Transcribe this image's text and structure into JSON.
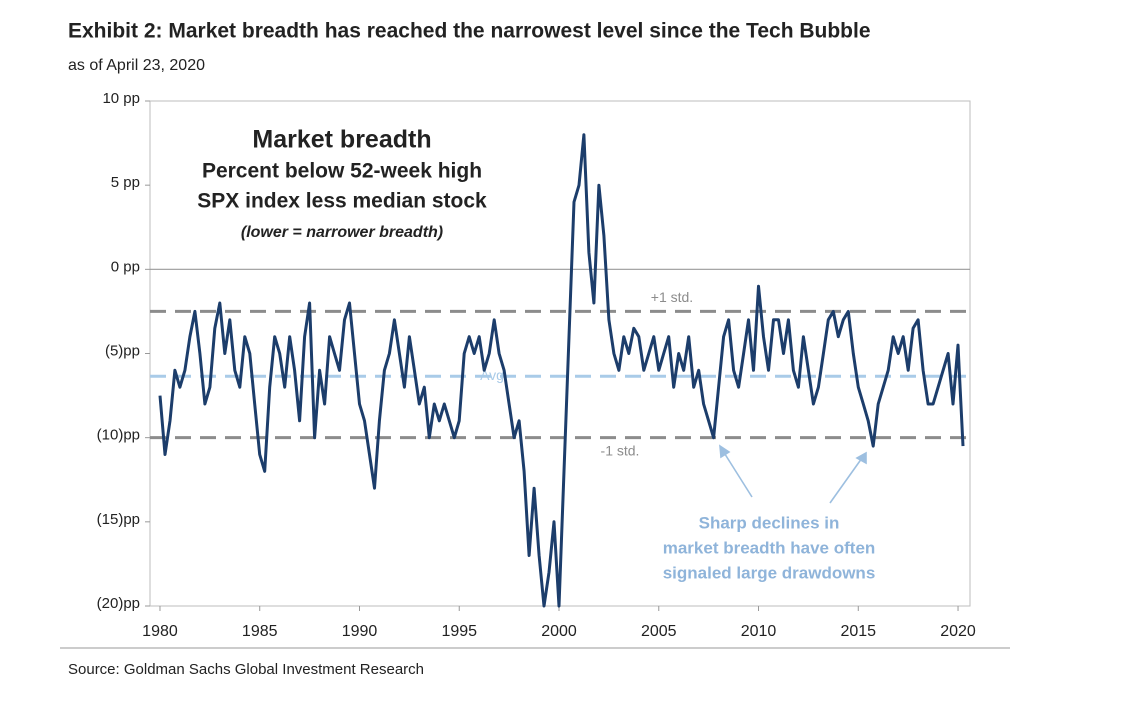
{
  "chart_data": {
    "type": "line",
    "title": "Exhibit 2: Market breadth has reached the narrowest level since the Tech Bubble",
    "subtitle": "as of April 23, 2020",
    "inset_title": "Market breadth",
    "inset_lines": [
      "Percent below 52-week high",
      "SPX index less median stock",
      "(lower = narrower  breadth)"
    ],
    "annotation_lines": [
      "Sharp declines in",
      "market breadth have often",
      "signaled large drawdowns"
    ],
    "source": "Source: Goldman Sachs Global Investment Research",
    "xlim": [
      1979.5,
      2020.6
    ],
    "xticks": [
      1980,
      1985,
      1990,
      1995,
      2000,
      2005,
      2010,
      2015,
      2020
    ],
    "ylim": [
      -20,
      10
    ],
    "yticks": [
      {
        "value": 10,
        "label": "10 pp"
      },
      {
        "value": 5,
        "label": "5 pp"
      },
      {
        "value": 0,
        "label": "0 pp"
      },
      {
        "value": -5,
        "label": "(5)pp"
      },
      {
        "value": -10,
        "label": "(10)pp"
      },
      {
        "value": -15,
        "label": "(15)pp"
      },
      {
        "value": -20,
        "label": "(20)pp"
      }
    ],
    "zero_line": true,
    "reference_lines": [
      {
        "value": -2.5,
        "label": "+1 std.",
        "color": "#8c8c8c"
      },
      {
        "value": -6.35,
        "label": "Avg",
        "color": "#a9cbe8"
      },
      {
        "value": -10,
        "label": "-1 std.",
        "color": "#8c8c8c"
      }
    ],
    "x": [
      1980,
      1980.25,
      1980.5,
      1980.75,
      1981,
      1981.25,
      1981.5,
      1981.75,
      1982,
      1982.25,
      1982.5,
      1982.75,
      1983,
      1983.25,
      1983.5,
      1983.75,
      1984,
      1984.25,
      1984.5,
      1984.75,
      1985,
      1985.25,
      1985.5,
      1985.75,
      1986,
      1986.25,
      1986.5,
      1986.75,
      1987,
      1987.25,
      1987.5,
      1987.75,
      1988,
      1988.25,
      1988.5,
      1988.75,
      1989,
      1989.25,
      1989.5,
      1989.75,
      1990,
      1990.25,
      1990.5,
      1990.75,
      1991,
      1991.25,
      1991.5,
      1991.75,
      1992,
      1992.25,
      1992.5,
      1992.75,
      1993,
      1993.25,
      1993.5,
      1993.75,
      1994,
      1994.25,
      1994.5,
      1994.75,
      1995,
      1995.25,
      1995.5,
      1995.75,
      1996,
      1996.25,
      1996.5,
      1996.75,
      1997,
      1997.25,
      1997.5,
      1997.75,
      1998,
      1998.25,
      1998.5,
      1998.75,
      1999,
      1999.25,
      1999.5,
      1999.75,
      2000,
      2000.25,
      2000.5,
      2000.75,
      2001,
      2001.25,
      2001.5,
      2001.75,
      2002,
      2002.25,
      2002.5,
      2002.75,
      2003,
      2003.25,
      2003.5,
      2003.75,
      2004,
      2004.25,
      2004.5,
      2004.75,
      2005,
      2005.25,
      2005.5,
      2005.75,
      2006,
      2006.25,
      2006.5,
      2006.75,
      2007,
      2007.25,
      2007.5,
      2007.75,
      2008,
      2008.25,
      2008.5,
      2008.75,
      2009,
      2009.25,
      2009.5,
      2009.75,
      2010,
      2010.25,
      2010.5,
      2010.75,
      2011,
      2011.25,
      2011.5,
      2011.75,
      2012,
      2012.25,
      2012.5,
      2012.75,
      2013,
      2013.25,
      2013.5,
      2013.75,
      2014,
      2014.25,
      2014.5,
      2014.75,
      2015,
      2015.25,
      2015.5,
      2015.75,
      2016,
      2016.25,
      2016.5,
      2016.75,
      2017,
      2017.25,
      2017.5,
      2017.75,
      2018,
      2018.25,
      2018.5,
      2018.75,
      2019,
      2019.25,
      2019.5,
      2019.75,
      2020,
      2020.25
    ],
    "series": [
      {
        "name": "Market breadth",
        "color": "#1c3d6b",
        "values": [
          -7.5,
          -11,
          -9,
          -6,
          -7,
          -6,
          -4,
          -2.5,
          -5,
          -8,
          -7,
          -3.5,
          -2,
          -5,
          -3,
          -6,
          -7,
          -4,
          -5,
          -8,
          -11,
          -12,
          -7,
          -4,
          -5,
          -7,
          -4,
          -6,
          -9,
          -4,
          -2,
          -10,
          -6,
          -8,
          -4,
          -5,
          -6,
          -3,
          -2,
          -5,
          -8,
          -9,
          -11,
          -13,
          -9,
          -6,
          -5,
          -3,
          -5,
          -7,
          -4,
          -6,
          -8,
          -7,
          -10,
          -8,
          -9,
          -8,
          -9,
          -10,
          -9,
          -5,
          -4,
          -5,
          -4,
          -6,
          -5,
          -3,
          -5,
          -6,
          -8,
          -10,
          -9,
          -12,
          -17,
          -13,
          -17,
          -20,
          -18,
          -15,
          -20,
          -12,
          -4,
          4,
          5,
          8,
          1,
          -2,
          5,
          2,
          -3,
          -5,
          -6,
          -4,
          -5,
          -3.5,
          -4,
          -6,
          -5,
          -4,
          -6,
          -5,
          -4,
          -7,
          -5,
          -6,
          -4,
          -7,
          -6,
          -8,
          -9,
          -10,
          -7,
          -4,
          -3,
          -6,
          -7,
          -5,
          -3,
          -6,
          -1,
          -4,
          -6,
          -3,
          -3,
          -5,
          -3,
          -6,
          -7,
          -4,
          -6,
          -8,
          -7,
          -5,
          -3,
          -2.5,
          -4,
          -3,
          -2.5,
          -5,
          -7,
          -8,
          -9,
          -10.5,
          -8,
          -7,
          -6,
          -4,
          -5,
          -4,
          -6,
          -3.5,
          -3,
          -6,
          -8,
          -8,
          -7,
          -6,
          -5,
          -8,
          -4.5,
          -10.5
        ]
      }
    ]
  }
}
